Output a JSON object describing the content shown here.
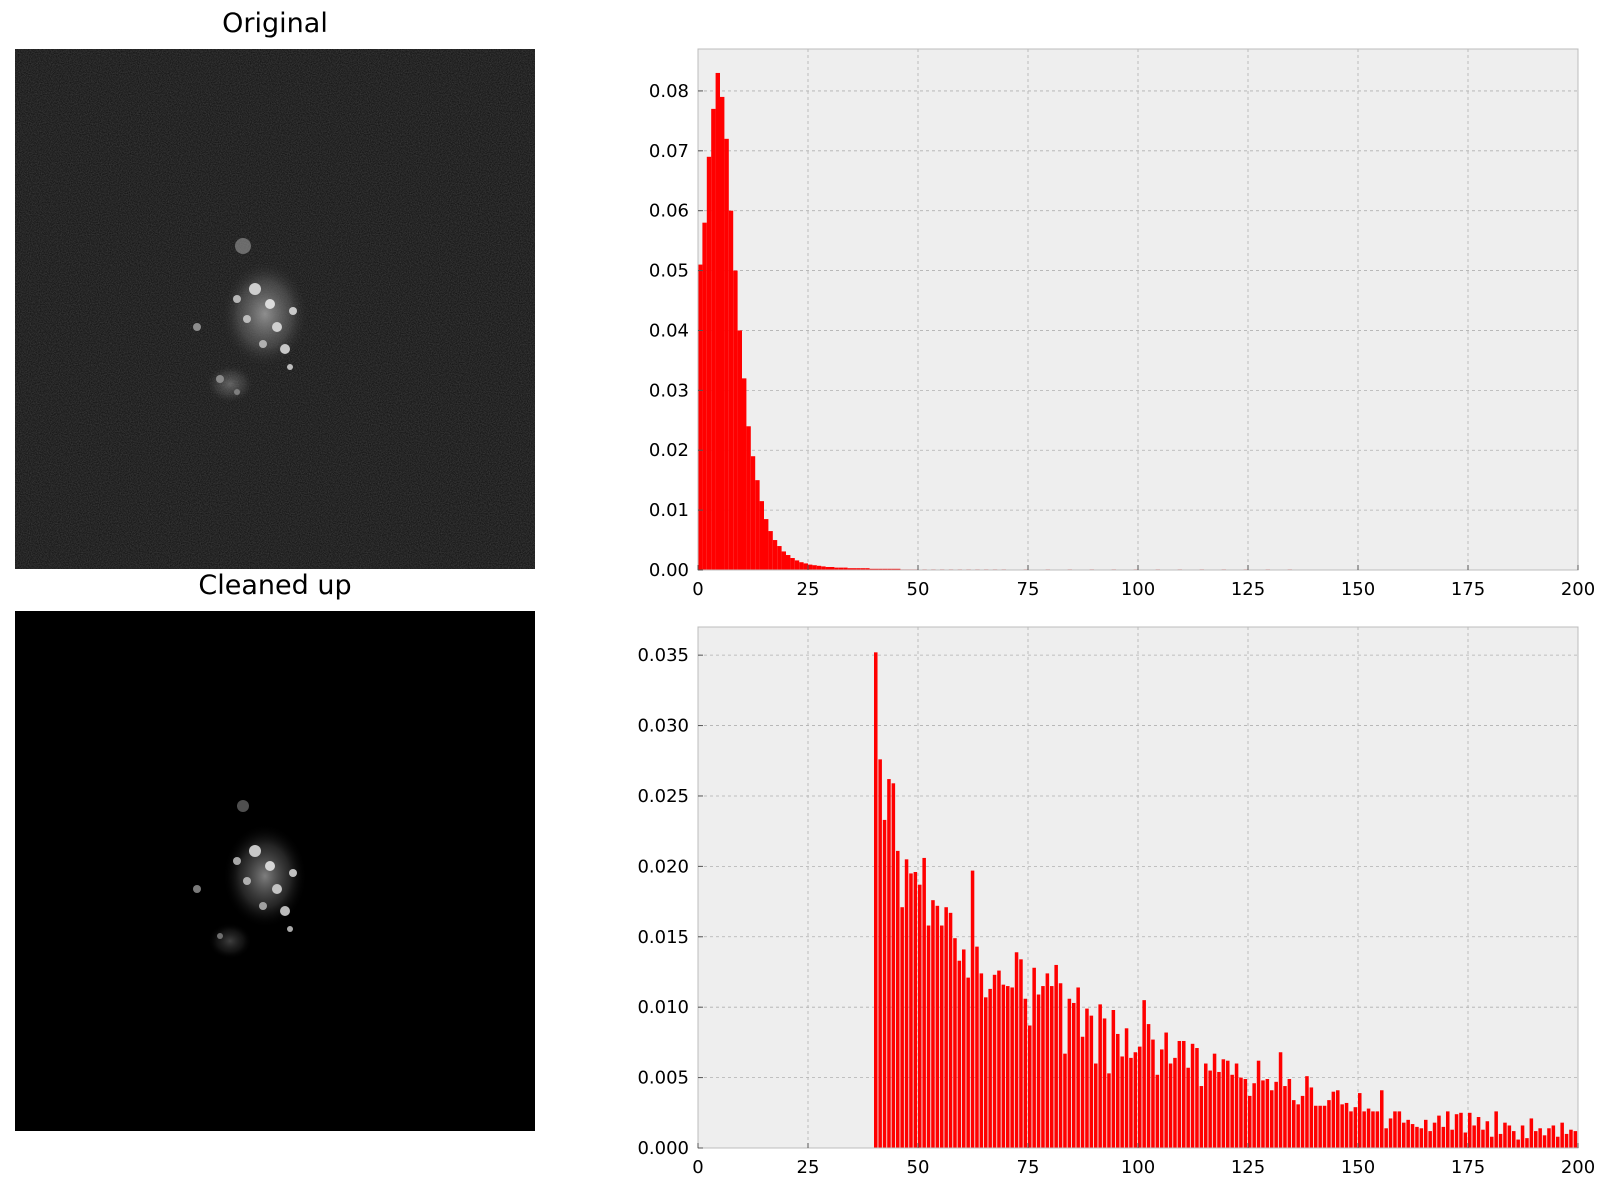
{
  "figure": {
    "top_title": "Original",
    "bottom_title": "Cleaned up"
  },
  "colors": {
    "bar": "#ff0000",
    "plot_bg": "#eeeeee",
    "grid": "#b0b0b0",
    "image_bg_original": "#0b0b0b",
    "image_bg_cleaned": "#000000"
  },
  "chart_data": [
    {
      "type": "bar",
      "subtype": "histogram",
      "title": "",
      "xlabel": "",
      "ylabel": "",
      "xlim": [
        0,
        200
      ],
      "ylim": [
        0,
        0.087
      ],
      "grid": true,
      "bin_width": 1,
      "x_ticks": [
        "0",
        "25",
        "50",
        "75",
        "100",
        "125",
        "150",
        "175",
        "200"
      ],
      "y_ticks": [
        "0.00",
        "0.01",
        "0.02",
        "0.03",
        "0.04",
        "0.05",
        "0.06",
        "0.07",
        "0.08"
      ],
      "y_tick_values": [
        0,
        0.01,
        0.02,
        0.03,
        0.04,
        0.05,
        0.06,
        0.07,
        0.08
      ],
      "x": [
        1,
        2,
        3,
        4,
        5,
        6,
        7,
        8,
        9,
        10,
        11,
        12,
        13,
        14,
        15,
        16,
        17,
        18,
        19,
        20,
        21,
        22,
        23,
        24,
        25,
        26,
        27,
        28,
        29,
        30,
        31,
        32,
        33,
        34,
        35,
        36,
        37,
        38,
        39,
        40,
        41,
        42,
        43,
        44,
        45,
        46,
        47,
        48,
        49,
        50,
        52,
        54,
        56,
        58,
        60,
        62,
        64,
        66,
        68,
        70,
        75,
        80,
        85,
        90,
        95,
        100,
        105,
        110,
        115,
        120,
        125,
        130,
        135
      ],
      "values": [
        0.051,
        0.058,
        0.069,
        0.077,
        0.083,
        0.079,
        0.072,
        0.06,
        0.05,
        0.04,
        0.032,
        0.024,
        0.019,
        0.015,
        0.0115,
        0.0085,
        0.0065,
        0.005,
        0.004,
        0.0031,
        0.0025,
        0.002,
        0.0016,
        0.0013,
        0.0011,
        0.0009,
        0.0008,
        0.0007,
        0.0006,
        0.0005,
        0.0005,
        0.0004,
        0.0004,
        0.0004,
        0.0003,
        0.0003,
        0.0003,
        0.0003,
        0.0003,
        0.0002,
        0.0002,
        0.0002,
        0.0002,
        0.0002,
        0.0002,
        0.0002,
        0.0001,
        0.0001,
        0.0001,
        0.0001,
        0.0001,
        0.0001,
        0.0001,
        0.0001,
        0.0001,
        0.0001,
        0.0001,
        0.0001,
        0.0001,
        0.0001,
        0.0001,
        0.0001,
        0.0001,
        0.0001,
        0.0001,
        0.0001,
        0.0001,
        0.0001,
        0.0001,
        0.0001,
        0.0001,
        0.0001,
        0.0001
      ]
    },
    {
      "type": "bar",
      "subtype": "histogram",
      "title": "",
      "xlabel": "",
      "ylabel": "",
      "xlim": [
        0,
        200
      ],
      "ylim": [
        0,
        0.037
      ],
      "grid": true,
      "bin_width": 0.8,
      "x_ticks": [
        "0",
        "25",
        "50",
        "75",
        "100",
        "125",
        "150",
        "175",
        "200"
      ],
      "y_ticks": [
        "0.000",
        "0.005",
        "0.010",
        "0.015",
        "0.020",
        "0.025",
        "0.030",
        "0.035"
      ],
      "y_tick_values": [
        0,
        0.005,
        0.01,
        0.015,
        0.02,
        0.025,
        0.03,
        0.035
      ],
      "x": [
        41,
        42,
        43,
        44,
        45,
        46,
        47,
        48,
        49,
        50,
        51,
        52,
        53,
        54,
        55,
        56,
        57,
        58,
        59,
        60,
        61,
        62,
        63,
        64,
        65,
        66,
        67,
        68,
        69,
        70,
        71,
        72,
        73,
        74,
        75,
        76,
        77,
        78,
        79,
        80,
        81,
        82,
        83,
        84,
        85,
        86,
        87,
        88,
        89,
        90,
        91,
        92,
        93,
        94,
        95,
        96,
        97,
        98,
        99,
        100,
        101,
        102,
        103,
        104,
        105,
        106,
        107,
        108,
        109,
        110,
        111,
        112,
        113,
        114,
        115,
        116,
        117,
        118,
        119,
        120,
        121,
        122,
        123,
        124,
        125,
        126,
        127,
        128,
        129,
        130,
        131,
        132,
        133,
        134,
        135,
        136,
        137,
        138,
        139,
        140,
        141,
        142,
        143,
        144,
        145,
        146,
        147,
        148,
        149,
        150,
        151,
        152,
        153,
        154,
        155,
        156,
        157,
        158,
        159,
        160,
        161,
        162,
        163,
        164,
        165,
        166,
        167,
        168,
        169,
        170,
        171,
        172,
        173,
        174,
        175,
        176,
        177,
        178,
        179,
        180,
        181,
        182,
        183,
        184,
        185,
        186,
        187,
        188,
        189,
        190,
        191,
        192,
        193,
        194,
        195,
        196,
        197,
        198,
        199,
        200
      ],
      "values": [
        0.0352,
        0.0276,
        0.0233,
        0.0262,
        0.0259,
        0.0211,
        0.0171,
        0.0205,
        0.0195,
        0.0196,
        0.0187,
        0.0206,
        0.0158,
        0.0176,
        0.0172,
        0.0158,
        0.0171,
        0.0167,
        0.0149,
        0.0133,
        0.0141,
        0.0121,
        0.0197,
        0.0143,
        0.0124,
        0.0107,
        0.0113,
        0.0123,
        0.0126,
        0.0116,
        0.0115,
        0.0114,
        0.0139,
        0.0134,
        0.0106,
        0.0087,
        0.0128,
        0.0109,
        0.0115,
        0.0124,
        0.0115,
        0.013,
        0.0117,
        0.0067,
        0.0106,
        0.0103,
        0.0114,
        0.0079,
        0.0099,
        0.0094,
        0.006,
        0.0102,
        0.0092,
        0.0053,
        0.0098,
        0.0081,
        0.0065,
        0.0085,
        0.0064,
        0.0068,
        0.0072,
        0.0105,
        0.0088,
        0.0077,
        0.0052,
        0.007,
        0.0082,
        0.006,
        0.0064,
        0.0076,
        0.0076,
        0.0057,
        0.0074,
        0.0071,
        0.0044,
        0.006,
        0.0055,
        0.0067,
        0.0054,
        0.0063,
        0.0062,
        0.0052,
        0.006,
        0.005,
        0.0049,
        0.0037,
        0.0046,
        0.0062,
        0.0048,
        0.0049,
        0.0041,
        0.0047,
        0.0068,
        0.0044,
        0.0049,
        0.0034,
        0.0031,
        0.0037,
        0.0051,
        0.0043,
        0.003,
        0.003,
        0.003,
        0.0034,
        0.004,
        0.0041,
        0.0031,
        0.0032,
        0.0026,
        0.0029,
        0.0039,
        0.0026,
        0.0028,
        0.0026,
        0.0026,
        0.0041,
        0.0014,
        0.0021,
        0.0026,
        0.0026,
        0.0018,
        0.002,
        0.0017,
        0.0015,
        0.0014,
        0.002,
        0.0012,
        0.0018,
        0.0023,
        0.0015,
        0.0026,
        0.0013,
        0.0024,
        0.0025,
        0.0011,
        0.0025,
        0.0016,
        0.0022,
        0.0013,
        0.0019,
        0.0008,
        0.0026,
        0.001,
        0.0018,
        0.0016,
        0.0012,
        0.0006,
        0.0016,
        0.0007,
        0.0021,
        0.0012,
        0.0014,
        0.0009,
        0.0014,
        0.0016,
        0.0008,
        0.0018,
        0.001,
        0.0013,
        0.0012
      ]
    }
  ]
}
